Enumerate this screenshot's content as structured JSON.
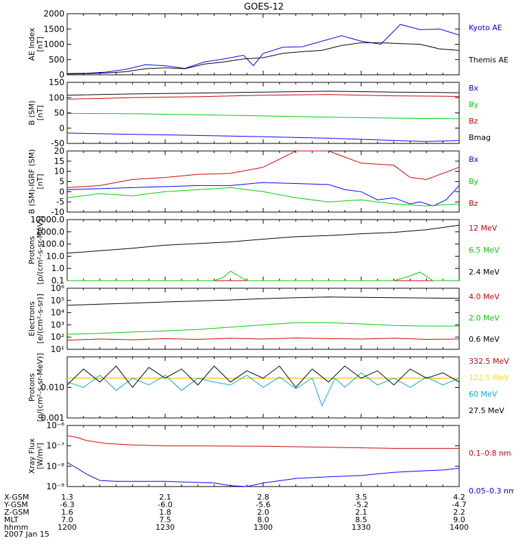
{
  "chart_data": {
    "type": "line",
    "title": "GOES-12",
    "x_ticks": [
      "1200",
      "1230",
      "1300",
      "1330",
      "1400"
    ],
    "x_range": [
      0,
      120
    ],
    "footer": {
      "rows": [
        {
          "label": "X-GSM",
          "values": [
            "1.3",
            "2.1",
            "2.8",
            "3.5",
            "4.2"
          ]
        },
        {
          "label": "Y-GSM",
          "values": [
            "-6.3",
            "-6.0",
            "-5.6",
            "-5.2",
            "-4.7"
          ]
        },
        {
          "label": "Z-GSM",
          "values": [
            "1.6",
            "1.8",
            "2.0",
            "2.1",
            "2.2"
          ]
        },
        {
          "label": "MLT",
          "values": [
            "7.0",
            "7.5",
            "8.0",
            "8.5",
            "9.0"
          ]
        },
        {
          "label": "hhmm",
          "values": [
            "1200",
            "1230",
            "1300",
            "1330",
            "1400"
          ]
        }
      ],
      "date": "2007 Jan 15"
    },
    "panels": [
      {
        "id": "ae",
        "ylabel": [
          "AE Index",
          "[nT]"
        ],
        "scale": "linear",
        "ylim": [
          0,
          2000
        ],
        "ticks": [
          "0",
          "500",
          "1000",
          "1500",
          "2000"
        ],
        "tick_values": [
          0,
          500,
          1000,
          1500,
          2000
        ],
        "series": [
          {
            "name": "Kyoto AE",
            "color": "#0000ff",
            "x": [
              0,
              6,
              12,
              18,
              24,
              30,
              36,
              42,
              48,
              54,
              57,
              60,
              66,
              72,
              78,
              84,
              90,
              96,
              102,
              108,
              114,
              120
            ],
            "y": [
              40,
              50,
              90,
              180,
              330,
              300,
              210,
              420,
              520,
              640,
              300,
              700,
              900,
              920,
              1100,
              1280,
              1100,
              1000,
              1650,
              1480,
              1500,
              1300
            ]
          },
          {
            "name": "Themis AE",
            "color": "#000000",
            "x": [
              0,
              6,
              12,
              18,
              24,
              30,
              36,
              42,
              48,
              54,
              60,
              66,
              72,
              78,
              84,
              90,
              96,
              102,
              108,
              114,
              120
            ],
            "y": [
              30,
              40,
              60,
              100,
              200,
              230,
              200,
              350,
              420,
              520,
              560,
              700,
              760,
              800,
              960,
              1050,
              1050,
              1020,
              1000,
              850,
              800
            ]
          }
        ]
      },
      {
        "id": "bsm",
        "ylabel": [
          "B (SM)",
          "[nT]"
        ],
        "scale": "linear",
        "ylim": [
          -50,
          150
        ],
        "ticks": [
          "-50",
          "0",
          "50",
          "100",
          "150"
        ],
        "tick_values": [
          -50,
          0,
          50,
          100,
          150
        ],
        "series": [
          {
            "name": "Bx",
            "color": "#0000ff",
            "x": [
              0,
              20,
              40,
              60,
              80,
              100,
              110,
              120
            ],
            "y": [
              -16,
              -20,
              -24,
              -28,
              -33,
              -40,
              -44,
              -40
            ]
          },
          {
            "name": "By",
            "color": "#00cc00",
            "x": [
              0,
              20,
              40,
              60,
              80,
              100,
              120
            ],
            "y": [
              48,
              47,
              44,
              40,
              36,
              33,
              31
            ]
          },
          {
            "name": "Bz",
            "color": "#cc0000",
            "x": [
              0,
              20,
              40,
              60,
              80,
              100,
              120
            ],
            "y": [
              95,
              100,
              103,
              108,
              110,
              106,
              104
            ]
          },
          {
            "name": "Bmag",
            "color": "#000000",
            "x": [
              0,
              20,
              40,
              60,
              80,
              100,
              120
            ],
            "y": [
              108,
              112,
              115,
              118,
              121,
              118,
              116
            ]
          }
        ]
      },
      {
        "id": "bigrf",
        "ylabel": [
          "B (SM)-IGRF (SM)",
          "[nT]"
        ],
        "scale": "linear",
        "ylim": [
          -10,
          20
        ],
        "ticks": [
          "-10",
          "-5",
          "0",
          "5",
          "10",
          "15",
          "20"
        ],
        "tick_values": [
          -10,
          -5,
          0,
          5,
          10,
          15,
          20
        ],
        "series": [
          {
            "name": "Bx",
            "color": "#0000ff",
            "x": [
              0,
              10,
              20,
              30,
              40,
              50,
              60,
              70,
              80,
              85,
              90,
              95,
              100,
              105,
              108,
              112,
              116,
              120
            ],
            "y": [
              1,
              1.5,
              2,
              2.5,
              3,
              3,
              4.5,
              4,
              3.5,
              1,
              0,
              -4,
              -3,
              -6,
              -5,
              -7,
              -4,
              3
            ]
          },
          {
            "name": "By",
            "color": "#00cc00",
            "x": [
              0,
              10,
              20,
              30,
              40,
              50,
              60,
              70,
              80,
              90,
              100,
              110,
              120
            ],
            "y": [
              -3,
              -1,
              -2,
              0,
              1,
              2,
              0,
              -3,
              -5,
              -4,
              -6,
              -7,
              -6
            ]
          },
          {
            "name": "Bz",
            "color": "#cc0000",
            "x": [
              0,
              10,
              20,
              30,
              40,
              50,
              60,
              65,
              70,
              80,
              90,
              100,
              105,
              110,
              115,
              120
            ],
            "y": [
              2,
              3,
              6,
              7,
              8.5,
              9,
              12,
              16,
              20,
              20,
              14,
              13,
              7,
              6,
              9,
              12
            ]
          }
        ]
      },
      {
        "id": "protons1",
        "ylabel": [
          "Protons",
          "[p/(cm²-s-sr-MeV)]"
        ],
        "scale": "log",
        "ylim": [
          0.1,
          10000
        ],
        "ticks": [
          "0.1",
          "1.0",
          "10.0",
          "100.0",
          "1000.0",
          "10000.0"
        ],
        "tick_values": [
          0.1,
          1,
          10,
          100,
          1000,
          10000
        ],
        "series": [
          {
            "name": "12 MeV",
            "color": "#cc0000",
            "x": [
              0,
              120
            ],
            "y": [
              0.1,
              0.1
            ]
          },
          {
            "name": "6.5 MeV",
            "color": "#00cc00",
            "x": [
              0,
              30,
              45,
              48,
              50,
              55,
              60,
              70,
              80,
              90,
              100,
              104,
              108,
              112,
              120
            ],
            "y": [
              0.1,
              0.1,
              0.1,
              0.2,
              0.6,
              0.1,
              0.1,
              0.1,
              0.1,
              0.1,
              0.1,
              0.2,
              0.5,
              0.1,
              0.1
            ]
          },
          {
            "name": "2.4 MeV",
            "color": "#000000",
            "x": [
              0,
              10,
              20,
              30,
              40,
              50,
              60,
              70,
              80,
              90,
              100,
              110,
              120
            ],
            "y": [
              18,
              28,
              45,
              80,
              110,
              150,
              250,
              400,
              500,
              700,
              900,
              1500,
              3500
            ]
          }
        ]
      },
      {
        "id": "electrons",
        "ylabel": [
          "Electrons",
          "[e/(cm²-s-sr)]"
        ],
        "scale": "log",
        "ylim": [
          10,
          1000000
        ],
        "ticks": [
          "10¹",
          "10²",
          "10³",
          "10⁴",
          "10⁵",
          "10⁶"
        ],
        "tick_values": [
          10,
          100,
          1000,
          10000,
          100000,
          1000000
        ],
        "series": [
          {
            "name": "4.0 MeV",
            "color": "#cc0000",
            "x": [
              0,
              10,
              20,
              30,
              40,
              50,
              60,
              70,
              80,
              90,
              100,
              110,
              120
            ],
            "y": [
              55,
              70,
              60,
              75,
              65,
              80,
              70,
              85,
              75,
              70,
              80,
              65,
              70
            ]
          },
          {
            "name": "2.0 MeV",
            "color": "#00cc00",
            "x": [
              0,
              10,
              20,
              30,
              40,
              50,
              60,
              70,
              80,
              90,
              100,
              110,
              120
            ],
            "y": [
              170,
              200,
              260,
              320,
              420,
              650,
              1000,
              1500,
              1500,
              1200,
              900,
              800,
              800
            ]
          },
          {
            "name": "0.6 MeV",
            "color": "#000000",
            "x": [
              0,
              10,
              20,
              30,
              40,
              50,
              60,
              70,
              80,
              90,
              100,
              110,
              120
            ],
            "y": [
              40000,
              50000,
              60000,
              75000,
              90000,
              110000,
              140000,
              170000,
              190000,
              180000,
              170000,
              160000,
              150000
            ]
          }
        ]
      },
      {
        "id": "protons2",
        "ylabel": [
          "Protons",
          "[p/(cm²-s-sr-MeV)]"
        ],
        "scale": "log",
        "ylim": [
          0.001,
          0.1
        ],
        "ticks": [
          "0.001",
          "0.010"
        ],
        "tick_values": [
          0.001,
          0.01
        ],
        "series": [
          {
            "name": "332.5 MeV",
            "color": "#cc0000",
            "x": [
              0,
              120
            ],
            "y": [
              0.02,
              0.02
            ]
          },
          {
            "name": "122.5 MeV",
            "color": "#ffdd00",
            "x": [
              0,
              120
            ],
            "y": [
              0.02,
              0.02
            ]
          },
          {
            "name": "60 MeV",
            "color": "#00aadd",
            "x": [
              0,
              5,
              10,
              15,
              20,
              25,
              30,
              35,
              40,
              45,
              50,
              55,
              60,
              65,
              70,
              75,
              78,
              82,
              85,
              90,
              95,
              100,
              105,
              110,
              115,
              120
            ],
            "y": [
              0.015,
              0.01,
              0.025,
              0.008,
              0.02,
              0.012,
              0.025,
              0.008,
              0.02,
              0.015,
              0.012,
              0.025,
              0.01,
              0.022,
              0.009,
              0.02,
              0.0025,
              0.02,
              0.01,
              0.03,
              0.012,
              0.02,
              0.01,
              0.022,
              0.012,
              0.02
            ]
          },
          {
            "name": "27.5 MeV",
            "color": "#000000",
            "x": [
              0,
              5,
              10,
              15,
              20,
              25,
              30,
              35,
              40,
              45,
              50,
              55,
              60,
              65,
              70,
              75,
              80,
              85,
              90,
              95,
              100,
              105,
              110,
              115,
              120
            ],
            "y": [
              0.012,
              0.04,
              0.015,
              0.05,
              0.01,
              0.045,
              0.02,
              0.04,
              0.012,
              0.05,
              0.015,
              0.035,
              0.02,
              0.05,
              0.01,
              0.04,
              0.015,
              0.05,
              0.02,
              0.035,
              0.012,
              0.04,
              0.02,
              0.03,
              0.015
            ]
          }
        ]
      },
      {
        "id": "xray",
        "ylabel": [
          "Xray Flux",
          "[W/m²]"
        ],
        "scale": "log",
        "ylim": [
          1e-09,
          1e-06
        ],
        "ticks": [
          "10⁻⁹",
          "10⁻⁸",
          "10⁻⁷",
          "10⁻⁶"
        ],
        "tick_values": [
          1e-09,
          1e-08,
          1e-07,
          1e-06
        ],
        "series": [
          {
            "name": "0.1–0.8 nm",
            "color": "#cc0000",
            "x": [
              0,
              3,
              6,
              12,
              20,
              30,
              40,
              60,
              80,
              100,
              120
            ],
            "y": [
              3.2e-07,
              2.6e-07,
              1.8e-07,
              1.3e-07,
              1.1e-07,
              1e-07,
              1e-07,
              9.5e-08,
              8.5e-08,
              7.5e-08,
              7.5e-08
            ]
          },
          {
            "name": "0.05–0.3 nm",
            "color": "#0000ff",
            "x": [
              0,
              3,
              6,
              10,
              15,
              30,
              45,
              50,
              55,
              60,
              70,
              80,
              90,
              100,
              110,
              115,
              120
            ],
            "y": [
              1.5e-08,
              8e-09,
              4e-09,
              2e-09,
              1.8e-09,
              1.8e-09,
              1.5e-09,
              1.1e-09,
              1e-09,
              1.5e-09,
              2.5e-09,
              3e-09,
              3.5e-09,
              5e-09,
              6e-09,
              6.5e-09,
              8e-09
            ]
          }
        ]
      }
    ]
  }
}
